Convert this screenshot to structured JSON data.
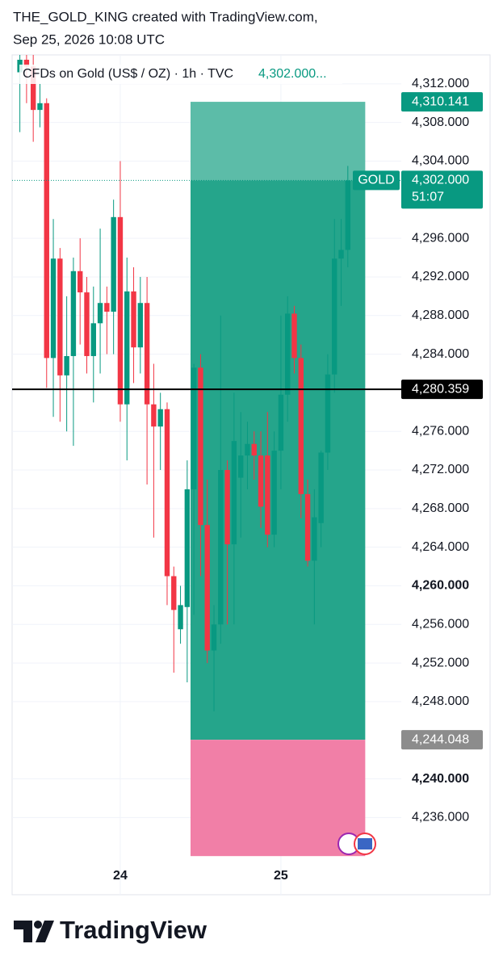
{
  "chart_data": {
    "type": "candlestick",
    "title": "THE_GOLD_KING created with TradingView.com,",
    "subtitle": "Sep 25, 2026 10:08 UTC",
    "symbol_info": "CFDs on Gold (US$ / OZ) · 1h · TVC",
    "symbol_price": "4,302.000...",
    "footer": "TradingView",
    "up_color": "#089981",
    "down_color": "#f23645",
    "categories": [
      null,
      null,
      null,
      null,
      null,
      null,
      null,
      null,
      null,
      null,
      null,
      null,
      null,
      null,
      null,
      "24",
      null,
      null,
      null,
      null,
      null,
      null,
      null,
      null,
      null,
      null,
      null,
      null,
      null,
      null,
      null,
      null,
      null,
      null,
      null,
      null,
      null,
      null,
      null,
      "25",
      null,
      null,
      null,
      null,
      null,
      null,
      null,
      null,
      null,
      null
    ],
    "open": [
      4313.2,
      4314.5,
      4313.8,
      4309.3,
      4310,
      4283.6,
      4293.9,
      4281.8,
      4283.8,
      4292.6,
      4290.4,
      4283.8,
      4287.2,
      4289.3,
      4288.4,
      4298.2,
      4278.8,
      4290.5,
      4284.7,
      4289.3,
      4278.8,
      4276.5,
      4278.3,
      4261,
      4255.5,
      4257.8,
      4270,
      4282.6,
      4266.3,
      4253.3,
      4256,
      4272,
      4264.3,
      4271.2,
      4273.5,
      4274.7,
      4273.5,
      4273.5,
      4265.3,
      4274,
      4279.8,
      4288.2,
      4283.6,
      4269.5,
      4262.6,
      4266.5,
      4273.8,
      4281.9,
      4293.9,
      4294.8
    ],
    "high": [
      4315,
      4315.5,
      4315,
      4312,
      4310.5,
      4298,
      4295,
      4290,
      4294,
      4296,
      4292,
      4291,
      4297,
      4291,
      4300,
      4304,
      4294,
      4293,
      4292,
      4292,
      4283,
      4280,
      4279,
      4262,
      4260,
      4273,
      4283,
      4284,
      4271,
      4258,
      4288,
      4273,
      4280,
      4278,
      4277,
      4276,
      4276,
      4278,
      4276,
      4288,
      4290,
      4289,
      4285,
      4271,
      4270,
      4274,
      4284,
      4298,
      4298,
      4303.5
    ],
    "low": [
      4307,
      4310,
      4306,
      4307.5,
      4280.5,
      4277.5,
      4277,
      4276,
      4274.5,
      4285,
      4282,
      4279,
      4282,
      4284,
      4284,
      4277,
      4273,
      4281,
      4282,
      4270.5,
      4265,
      4272,
      4258,
      4251,
      4254,
      4250,
      4257,
      4261,
      4252,
      4247,
      4254,
      4256,
      4256,
      4265,
      4270,
      4271,
      4266,
      4264,
      4264,
      4270,
      4277,
      4282,
      4267,
      4262,
      4256,
      4264,
      4272,
      4280,
      4289,
      4293
    ],
    "close": [
      4314.5,
      4313.8,
      4309.3,
      4310,
      4283.6,
      4293.9,
      4281.8,
      4283.8,
      4292.6,
      4290.4,
      4283.8,
      4287.2,
      4289.3,
      4288.4,
      4298.2,
      4278.8,
      4290.5,
      4284.7,
      4289.3,
      4278.8,
      4276.5,
      4278.3,
      4261,
      4257.5,
      4258,
      4270,
      4282.6,
      4266.3,
      4253.3,
      4256,
      4272,
      4264.3,
      4275,
      4273.5,
      4274.7,
      4273.5,
      4268.2,
      4265.3,
      4274,
      4279.8,
      4288.2,
      4283.6,
      4269.5,
      4262.6,
      4267.1,
      4273.8,
      4281.9,
      4293.9,
      4294.8,
      4302
    ],
    "ylim": [
      4228,
      4315
    ],
    "yticks": [
      {
        "value": 4312,
        "label": "4,312.000"
      },
      {
        "value": 4308,
        "label": "4,308.000"
      },
      {
        "value": 4304,
        "label": "4,304.000"
      },
      {
        "value": 4296,
        "label": "4,296.000"
      },
      {
        "value": 4292,
        "label": "4,292.000"
      },
      {
        "value": 4288,
        "label": "4,288.000"
      },
      {
        "value": 4284,
        "label": "4,284.000"
      },
      {
        "value": 4276,
        "label": "4,276.000"
      },
      {
        "value": 4272,
        "label": "4,272.000"
      },
      {
        "value": 4268,
        "label": "4,268.000"
      },
      {
        "value": 4264,
        "label": "4,264.000"
      },
      {
        "value": 4260,
        "label": "4,260.000",
        "bold": true
      },
      {
        "value": 4256,
        "label": "4,256.000"
      },
      {
        "value": 4252,
        "label": "4,252.000"
      },
      {
        "value": 4248,
        "label": "4,248.000"
      },
      {
        "value": 4240,
        "label": "4,240.000",
        "bold": true
      },
      {
        "value": 4236,
        "label": "4,236.000"
      }
    ],
    "grid": true,
    "last_price": {
      "value": 4302,
      "label": "4,302.000"
    },
    "countdown": "51:07",
    "symbol_tag": "GOLD",
    "hline": {
      "value": 4280.359,
      "label": "4,280.359",
      "color": "#000000"
    },
    "position": {
      "target": {
        "value": 4310.141,
        "label": "4,310.141"
      },
      "entry": {
        "value": 4244.048,
        "label": "4,244.048"
      },
      "stop": 4232,
      "from_index": 25.5,
      "to_index": 51.6,
      "target_color": "#5cbca8",
      "profit_color": "#25a58b",
      "stop_color": "#f17fa7"
    }
  }
}
